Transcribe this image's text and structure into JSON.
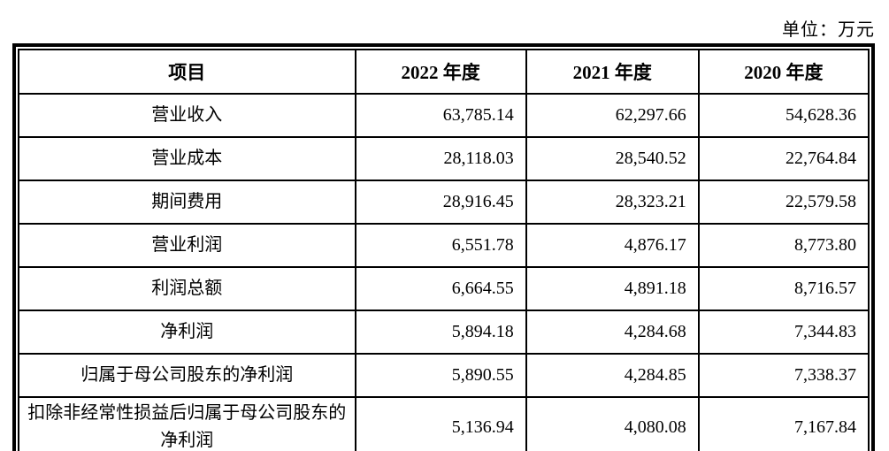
{
  "unit_label": "单位：万元",
  "table": {
    "headers": [
      "项目",
      "2022 年度",
      "2021 年度",
      "2020 年度"
    ],
    "rows": [
      {
        "label": "营业收入",
        "values": [
          "63,785.14",
          "62,297.66",
          "54,628.36"
        ]
      },
      {
        "label": "营业成本",
        "values": [
          "28,118.03",
          "28,540.52",
          "22,764.84"
        ]
      },
      {
        "label": "期间费用",
        "values": [
          "28,916.45",
          "28,323.21",
          "22,579.58"
        ]
      },
      {
        "label": "营业利润",
        "values": [
          "6,551.78",
          "4,876.17",
          "8,773.80"
        ]
      },
      {
        "label": "利润总额",
        "values": [
          "6,664.55",
          "4,891.18",
          "8,716.57"
        ]
      },
      {
        "label": "净利润",
        "values": [
          "5,894.18",
          "4,284.68",
          "7,344.83"
        ]
      },
      {
        "label": "归属于母公司股东的净利润",
        "values": [
          "5,890.55",
          "4,284.85",
          "7,338.37"
        ]
      },
      {
        "label": "扣除非经常性损益后归属于母公司股东的净利润",
        "values": [
          "5,136.94",
          "4,080.08",
          "7,167.84"
        ]
      }
    ]
  }
}
